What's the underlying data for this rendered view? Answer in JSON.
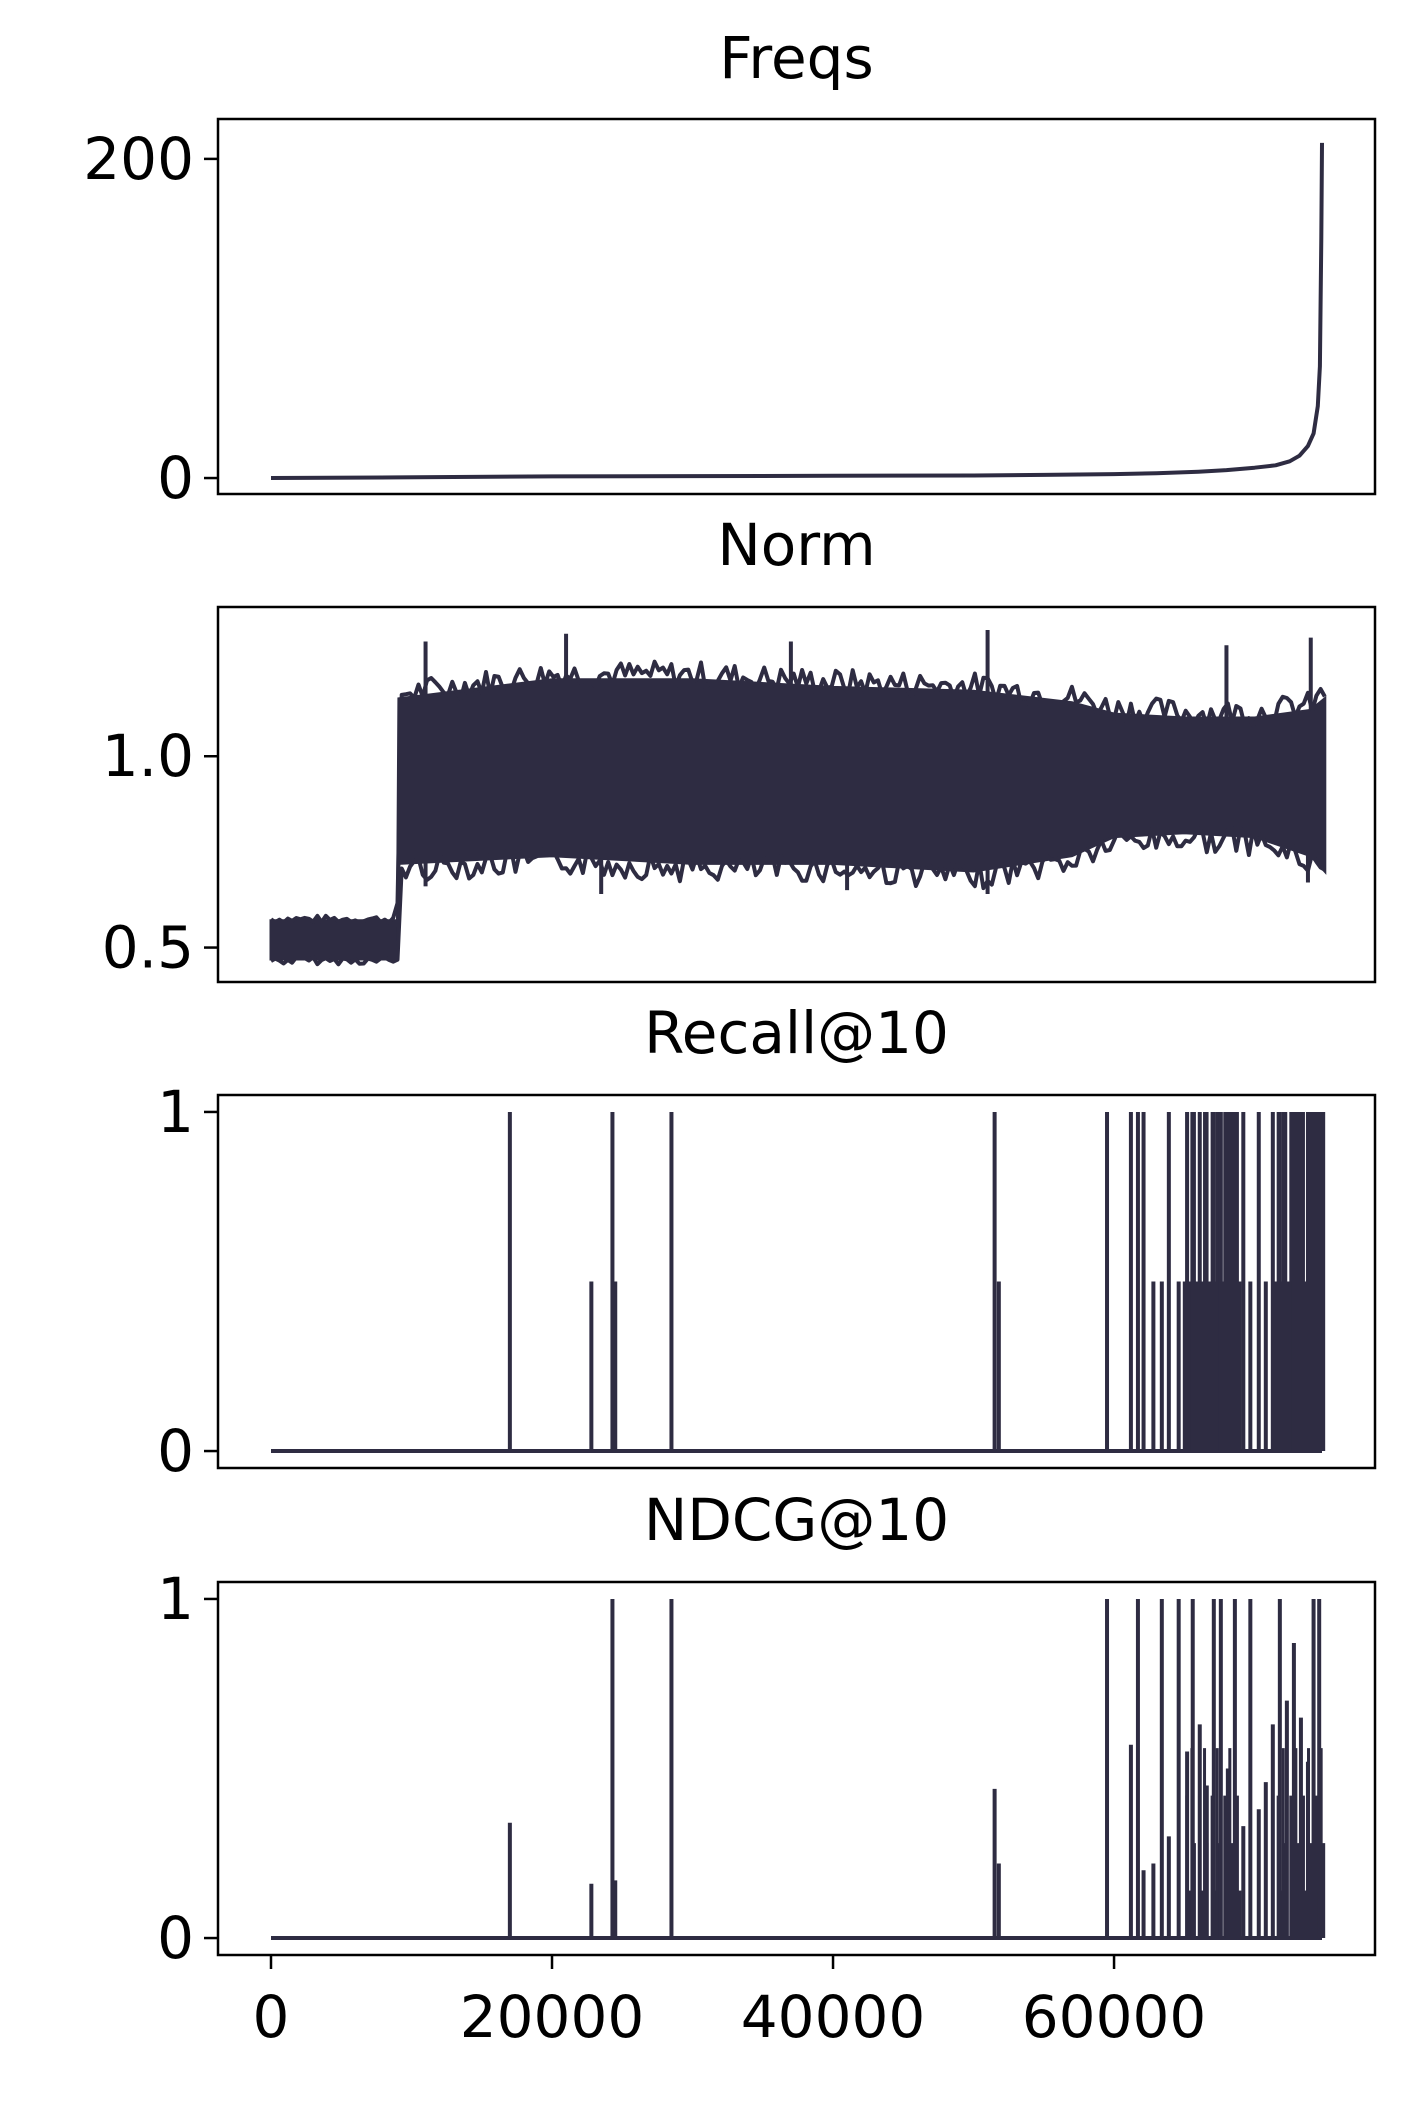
{
  "chart_data": [
    {
      "type": "line",
      "title": "Freqs",
      "xlim": [
        0,
        75500
      ],
      "ylim": [
        -10,
        225
      ],
      "yticks": [
        {
          "value": 0,
          "label": "0"
        },
        {
          "value": 200,
          "label": "200"
        }
      ],
      "color": "#2e2c42",
      "series": [
        {
          "x": [
            0,
            9000,
            20000,
            30000,
            40000,
            50000,
            55000,
            60000,
            63000,
            66000,
            68000,
            70000,
            71500,
            72500,
            73200,
            73800,
            74200,
            74500,
            74650,
            74750,
            74800
          ],
          "y": [
            0,
            0.4,
            1,
            1.2,
            1.4,
            1.6,
            2,
            2.5,
            3,
            4,
            5,
            6.5,
            8,
            10.5,
            14,
            20,
            28,
            45,
            70,
            150,
            210
          ]
        }
      ]
    },
    {
      "type": "line",
      "title": "Norm",
      "xlim": [
        0,
        75500
      ],
      "ylim": [
        0.41,
        1.39
      ],
      "yticks": [
        {
          "value": 0.5,
          "label": "0.5"
        },
        {
          "value": 1.0,
          "label": "1.0"
        }
      ],
      "color": "#2e2c42",
      "series": [
        {
          "x": [
            0,
            9000,
            9100,
            20000,
            30000,
            40000,
            50000,
            57000,
            60000,
            65000,
            70000,
            74000,
            75000
          ],
          "y_low": [
            0.47,
            0.47,
            0.72,
            0.74,
            0.72,
            0.72,
            0.7,
            0.74,
            0.79,
            0.8,
            0.79,
            0.74,
            0.7
          ],
          "y_high": [
            0.57,
            0.57,
            1.15,
            1.2,
            1.2,
            1.18,
            1.17,
            1.14,
            1.11,
            1.1,
            1.1,
            1.12,
            1.15
          ],
          "spikes_up": [
            {
              "x": 11000,
              "y": 1.3
            },
            {
              "x": 21000,
              "y": 1.32
            },
            {
              "x": 37000,
              "y": 1.3
            },
            {
              "x": 51000,
              "y": 1.33
            },
            {
              "x": 68000,
              "y": 1.29
            },
            {
              "x": 74000,
              "y": 1.31
            }
          ],
          "spikes_down": [
            {
              "x": 11000,
              "y": 0.66
            },
            {
              "x": 23500,
              "y": 0.64
            },
            {
              "x": 41000,
              "y": 0.65
            },
            {
              "x": 51000,
              "y": 0.64
            },
            {
              "x": 73800,
              "y": 0.67
            }
          ]
        }
      ]
    },
    {
      "type": "line",
      "title": "Recall@10",
      "xlim": [
        0,
        75500
      ],
      "ylim": [
        -0.05,
        1.05
      ],
      "yticks": [
        {
          "value": 0,
          "label": "0"
        },
        {
          "value": 1,
          "label": "1"
        }
      ],
      "color": "#2e2c42",
      "series": [
        {
          "spikes": [
            {
              "x": 17000,
              "y": 1
            },
            {
              "x": 22800,
              "y": 0.5
            },
            {
              "x": 24300,
              "y": 1
            },
            {
              "x": 24500,
              "y": 0.5
            },
            {
              "x": 28500,
              "y": 1
            },
            {
              "x": 51500,
              "y": 1
            },
            {
              "x": 51800,
              "y": 0.5
            },
            {
              "x": 59500,
              "y": 1
            },
            {
              "x": 61200,
              "y": 1
            },
            {
              "x": 61700,
              "y": 1
            },
            {
              "x": 62100,
              "y": 1
            },
            {
              "x": 62800,
              "y": 0.5
            },
            {
              "x": 63400,
              "y": 0.5
            },
            {
              "x": 63900,
              "y": 1
            },
            {
              "x": 64600,
              "y": 0.5
            },
            {
              "x": 65200,
              "y": 1
            },
            {
              "x": 65600,
              "y": 1
            },
            {
              "x": 66100,
              "y": 1
            },
            {
              "x": 66600,
              "y": 0.5
            },
            {
              "x": 67100,
              "y": 1
            },
            {
              "x": 67600,
              "y": 1
            },
            {
              "x": 68100,
              "y": 1
            },
            {
              "x": 68600,
              "y": 1
            },
            {
              "x": 69200,
              "y": 1
            },
            {
              "x": 69700,
              "y": 0.5
            },
            {
              "x": 70300,
              "y": 1
            },
            {
              "x": 70800,
              "y": 0.5
            },
            {
              "x": 71300,
              "y": 1
            },
            {
              "x": 71800,
              "y": 1
            },
            {
              "x": 72300,
              "y": 0.5
            },
            {
              "x": 72800,
              "y": 1
            },
            {
              "x": 73300,
              "y": 1
            },
            {
              "x": 73800,
              "y": 1
            },
            {
              "x": 74200,
              "y": 1
            },
            {
              "x": 74600,
              "y": 1
            }
          ],
          "dense_band": [
            {
              "x0": 65000,
              "x1": 69000
            },
            {
              "x0": 71500,
              "x1": 75000
            }
          ]
        }
      ]
    },
    {
      "type": "line",
      "title": "NDCG@10",
      "xlim": [
        0,
        75500
      ],
      "xticks": [
        {
          "value": 0,
          "label": "0"
        },
        {
          "value": 20000,
          "label": "20000"
        },
        {
          "value": 40000,
          "label": "40000"
        },
        {
          "value": 60000,
          "label": "60000"
        }
      ],
      "ylim": [
        -0.05,
        1.05
      ],
      "yticks": [
        {
          "value": 0,
          "label": "0"
        },
        {
          "value": 1,
          "label": "1"
        }
      ],
      "color": "#2e2c42",
      "series": [
        {
          "spikes": [
            {
              "x": 17000,
              "y": 0.34
            },
            {
              "x": 22800,
              "y": 0.16
            },
            {
              "x": 24300,
              "y": 1
            },
            {
              "x": 24500,
              "y": 0.17
            },
            {
              "x": 28500,
              "y": 1
            },
            {
              "x": 51500,
              "y": 0.44
            },
            {
              "x": 51800,
              "y": 0.22
            },
            {
              "x": 59500,
              "y": 1
            },
            {
              "x": 61200,
              "y": 0.57
            },
            {
              "x": 61700,
              "y": 1
            },
            {
              "x": 62100,
              "y": 0.2
            },
            {
              "x": 62800,
              "y": 0.22
            },
            {
              "x": 63400,
              "y": 1
            },
            {
              "x": 63900,
              "y": 0.3
            },
            {
              "x": 64600,
              "y": 1
            },
            {
              "x": 65200,
              "y": 0.55
            },
            {
              "x": 65600,
              "y": 1
            },
            {
              "x": 66100,
              "y": 0.63
            },
            {
              "x": 66600,
              "y": 0.45
            },
            {
              "x": 67100,
              "y": 1
            },
            {
              "x": 67600,
              "y": 1
            },
            {
              "x": 68100,
              "y": 0.5
            },
            {
              "x": 68600,
              "y": 1
            },
            {
              "x": 69200,
              "y": 0.33
            },
            {
              "x": 69700,
              "y": 1
            },
            {
              "x": 70300,
              "y": 0.38
            },
            {
              "x": 70800,
              "y": 0.46
            },
            {
              "x": 71300,
              "y": 0.63
            },
            {
              "x": 71800,
              "y": 1
            },
            {
              "x": 72300,
              "y": 0.7
            },
            {
              "x": 72800,
              "y": 0.87
            },
            {
              "x": 73300,
              "y": 0.65
            },
            {
              "x": 73800,
              "y": 0.52
            },
            {
              "x": 74200,
              "y": 1
            },
            {
              "x": 74600,
              "y": 1
            }
          ],
          "dense_band": [
            {
              "x0": 65000,
              "x1": 69000
            },
            {
              "x0": 71500,
              "x1": 75000
            }
          ]
        }
      ]
    }
  ]
}
